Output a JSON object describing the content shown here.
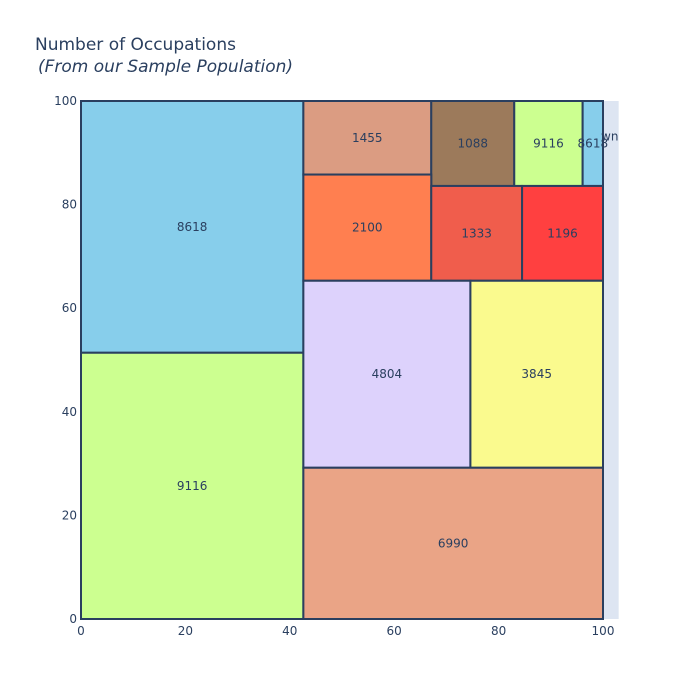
{
  "chart_data": {
    "type": "treemap",
    "title": "Number of Occupations",
    "subtitle": "(From our Sample Population)",
    "xlabel": "",
    "ylabel": "",
    "xlim": [
      0,
      100
    ],
    "ylim": [
      0,
      100
    ],
    "x_ticks": [
      "0",
      "20",
      "40",
      "60",
      "80",
      "100"
    ],
    "y_ticks": [
      "0",
      "20",
      "40",
      "60",
      "80",
      "100"
    ],
    "grid": false,
    "rectangles": [
      {
        "label": "8618",
        "x0": 0,
        "x1": 42.6,
        "y0": 51.4,
        "y1": 100,
        "color": "#87CEEB"
      },
      {
        "label": "9116",
        "x0": 0,
        "x1": 42.6,
        "y0": 0,
        "y1": 51.4,
        "color": "#CCFF90"
      },
      {
        "label": "1455",
        "x0": 42.6,
        "x1": 67.1,
        "y0": 85.8,
        "y1": 100,
        "color": "#DB9C82"
      },
      {
        "label": "1088",
        "x0": 67.1,
        "x1": 83.0,
        "y0": 83.6,
        "y1": 100,
        "color": "#9C7A5B"
      },
      {
        "label": "9116",
        "x0": 83.0,
        "x1": 96.1,
        "y0": 83.6,
        "y1": 100,
        "color": "#CCFF90"
      },
      {
        "label": "8618",
        "x0": 96.1,
        "x1": 100,
        "y0": 83.6,
        "y1": 100,
        "color": "#87CEEB"
      },
      {
        "label": "2100",
        "x0": 42.6,
        "x1": 67.1,
        "y0": 65.3,
        "y1": 85.8,
        "color": "#FF7F50"
      },
      {
        "label": "1333",
        "x0": 67.1,
        "x1": 84.5,
        "y0": 65.3,
        "y1": 83.6,
        "color": "#F05D4C"
      },
      {
        "label": "1196",
        "x0": 84.5,
        "x1": 100,
        "y0": 65.3,
        "y1": 83.6,
        "color": "#FF4040"
      },
      {
        "label": "4804",
        "x0": 42.6,
        "x1": 74.6,
        "y0": 29.2,
        "y1": 65.3,
        "color": "#DDD2FC"
      },
      {
        "label": "3845",
        "x0": 74.6,
        "x1": 100,
        "y0": 29.2,
        "y1": 65.3,
        "color": "#FAFA8E"
      },
      {
        "label": "6990",
        "x0": 42.6,
        "x1": 100,
        "y0": 0,
        "y1": 29.2,
        "color": "#EAA486"
      }
    ],
    "edge_strip": {
      "x0": 100,
      "x1": 103,
      "y0": 0,
      "y1": 100,
      "color": "#DDE5F2"
    },
    "overflow_text": "wn",
    "border_color": "#2A3F5F"
  }
}
